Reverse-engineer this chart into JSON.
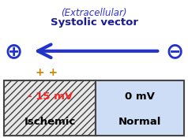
{
  "title_line1": "(Extracellular)",
  "title_line2": "Systolic vector",
  "title_color1": "#3333dd",
  "title_color2": "#1a1a99",
  "arrow_color": "#2233cc",
  "plus_symbol": "⊕",
  "minus_symbol": "⊖",
  "plus_plus_text": "+ +",
  "plus_plus_color": "#cc8800",
  "left_box_voltage": "- 15 mV",
  "left_box_label": "Ischemic",
  "left_voltage_color": "#ff2222",
  "left_label_color": "#000000",
  "left_box_hatch": "////",
  "left_box_facecolor": "#e8e8e8",
  "right_box_voltage": "0 mV",
  "right_box_label": "Normal",
  "right_voltage_color": "#000000",
  "right_label_color": "#000000",
  "right_box_facecolor": "#ccddf5",
  "background_color": "#ffffff",
  "symbol_color": "#2233cc",
  "fig_width": 2.38,
  "fig_height": 1.75,
  "dpi": 100
}
